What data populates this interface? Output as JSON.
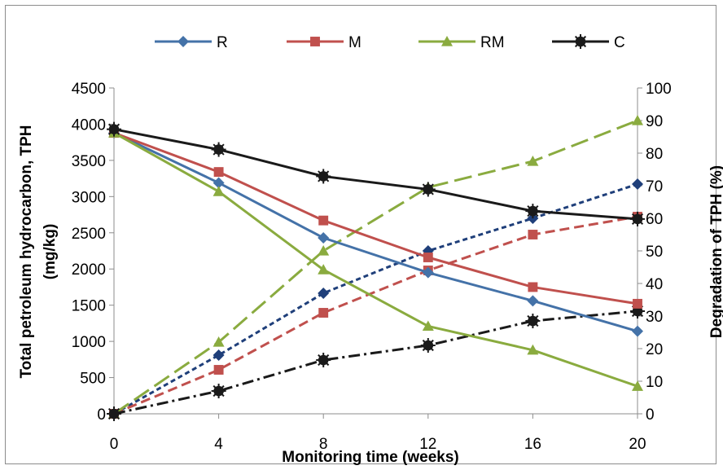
{
  "chart_data": {
    "type": "line",
    "x": [
      0,
      4,
      8,
      12,
      16,
      20
    ],
    "xlabel": "Monitoring time (weeks)",
    "ylabel_left_line1": "Total petroleum hydrocarbon, TPH",
    "ylabel_left_line2": "(mg/kg)",
    "ylabel_right": "Degradation of TPH (%)",
    "ylim_left": [
      0,
      4500
    ],
    "ylim_right": [
      0,
      100
    ],
    "xlim": [
      0,
      20
    ],
    "x_ticks": [
      "0",
      "4",
      "8",
      "12",
      "16",
      "20"
    ],
    "y_left_ticks": [
      "0",
      "500",
      "1000",
      "1500",
      "2000",
      "2500",
      "3000",
      "3500",
      "4000",
      "4500"
    ],
    "y_right_ticks": [
      "0",
      "10",
      "20",
      "30",
      "40",
      "50",
      "60",
      "70",
      "80",
      "90",
      "100"
    ],
    "grid": false,
    "legend_position": "top",
    "series": [
      {
        "name": "R",
        "axis": "left",
        "color": "#4472a8",
        "marker": "diamond",
        "values": [
          3880,
          3190,
          2430,
          1950,
          1560,
          1140
        ]
      },
      {
        "name": "M",
        "axis": "left",
        "color": "#c0504d",
        "marker": "square",
        "values": [
          3880,
          3340,
          2670,
          2160,
          1750,
          1520
        ]
      },
      {
        "name": "RM",
        "axis": "left",
        "color": "#8aab3f",
        "marker": "triangle",
        "values": [
          3880,
          3070,
          1990,
          1210,
          880,
          380
        ]
      },
      {
        "name": "C",
        "axis": "left",
        "color": "#1a1a1a",
        "marker": "circle",
        "values": [
          3930,
          3650,
          3280,
          3100,
          2800,
          2690
        ]
      },
      {
        "name": "",
        "axis": "right",
        "color": "#1f3f7a",
        "marker": "diamond",
        "dash": "short",
        "values": [
          0,
          18,
          37,
          50,
          60,
          70.5
        ]
      },
      {
        "name": "",
        "axis": "right",
        "color": "#c0504d",
        "marker": "square",
        "dash": "medium",
        "values": [
          0,
          13.5,
          31,
          44,
          55,
          60.5
        ]
      },
      {
        "name": "",
        "axis": "right",
        "color": "#8aab3f",
        "marker": "triangle",
        "dash": "long",
        "values": [
          0,
          22,
          50,
          69.5,
          77.5,
          90
        ]
      },
      {
        "name": "",
        "axis": "right",
        "color": "#1a1a1a",
        "marker": "circle",
        "dash": "dashdot",
        "values": [
          0,
          7,
          16.5,
          21,
          28.5,
          31.5
        ]
      }
    ],
    "legend": [
      "R",
      "M",
      "RM",
      "C"
    ]
  }
}
